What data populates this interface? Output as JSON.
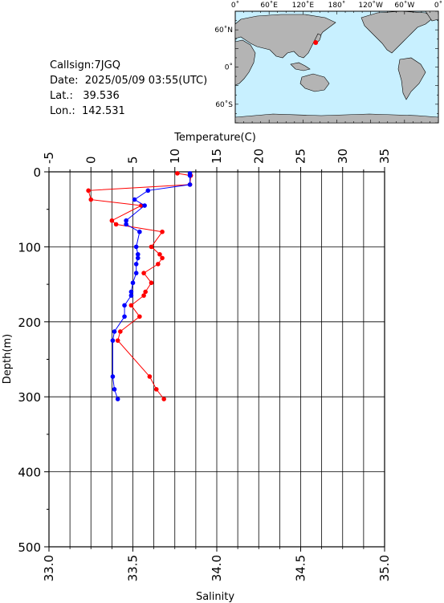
{
  "station": {
    "callsign_label": "Callsign:",
    "callsign": "7JGQ",
    "date_label": "Date:",
    "date": "2025/05/09 03:55(UTC)",
    "lat_label": "Lat.:",
    "lat": "39.536",
    "lon_label": "Lon.:",
    "lon": "142.531"
  },
  "map": {
    "top_labels": [
      "0˚",
      "60˚E",
      "120˚E",
      "180˚",
      "120˚W",
      "60˚W",
      "0˚"
    ],
    "lat_labels": [
      "60˚N",
      "0˚",
      "60˚S"
    ],
    "ocean_color": "#c8f0ff",
    "land_color": "#b4b4b4",
    "marker_color": "#ff0000",
    "station_lon": 142.531,
    "station_lat": 39.536
  },
  "chart_data": {
    "type": "scatter",
    "ylabel": "Depth(m)",
    "ylim": [
      0,
      500
    ],
    "y_ticks": [
      "0",
      "100",
      "200",
      "300",
      "400",
      "500"
    ],
    "grid": true,
    "temperature_axis": {
      "label": "Temperature(C)",
      "range": [
        -5,
        35
      ],
      "ticks": [
        "-5",
        "0",
        "5",
        "10",
        "15",
        "20",
        "25",
        "30",
        "35"
      ]
    },
    "salinity_axis": {
      "label": "Salinity",
      "range": [
        33.0,
        35.0
      ],
      "ticks": [
        "33.0",
        "33.5",
        "34.0",
        "34.5",
        "35.0"
      ]
    },
    "series": [
      {
        "quantity": "temperature",
        "color": "#ff0000",
        "points": [
          {
            "depth": 2,
            "value": 10.3
          },
          {
            "depth": 5,
            "value": 11.9
          },
          {
            "depth": 17,
            "value": 11.8
          },
          {
            "depth": 25,
            "value": -0.3
          },
          {
            "depth": 37,
            "value": 0.0
          },
          {
            "depth": 45,
            "value": 6.0
          },
          {
            "depth": 65,
            "value": 2.5
          },
          {
            "depth": 70,
            "value": 3.0
          },
          {
            "depth": 80,
            "value": 8.5
          },
          {
            "depth": 100,
            "value": 7.2
          },
          {
            "depth": 110,
            "value": 8.2
          },
          {
            "depth": 115,
            "value": 8.5
          },
          {
            "depth": 123,
            "value": 8.0
          },
          {
            "depth": 135,
            "value": 6.3
          },
          {
            "depth": 148,
            "value": 7.2
          },
          {
            "depth": 160,
            "value": 6.5
          },
          {
            "depth": 165,
            "value": 6.3
          },
          {
            "depth": 178,
            "value": 4.8
          },
          {
            "depth": 193,
            "value": 5.8
          },
          {
            "depth": 213,
            "value": 3.5
          },
          {
            "depth": 225,
            "value": 3.2
          },
          {
            "depth": 273,
            "value": 7.0
          },
          {
            "depth": 290,
            "value": 7.8
          },
          {
            "depth": 303,
            "value": 8.7
          }
        ]
      },
      {
        "quantity": "salinity",
        "color": "#0000ff",
        "points": [
          {
            "depth": 2,
            "value": 33.84
          },
          {
            "depth": 5,
            "value": 33.84
          },
          {
            "depth": 17,
            "value": 33.84
          },
          {
            "depth": 25,
            "value": 33.59
          },
          {
            "depth": 37,
            "value": 33.51
          },
          {
            "depth": 45,
            "value": 33.57
          },
          {
            "depth": 65,
            "value": 33.46
          },
          {
            "depth": 70,
            "value": 33.46
          },
          {
            "depth": 80,
            "value": 33.54
          },
          {
            "depth": 100,
            "value": 33.52
          },
          {
            "depth": 110,
            "value": 33.53
          },
          {
            "depth": 115,
            "value": 33.53
          },
          {
            "depth": 123,
            "value": 33.52
          },
          {
            "depth": 135,
            "value": 33.52
          },
          {
            "depth": 148,
            "value": 33.5
          },
          {
            "depth": 160,
            "value": 33.49
          },
          {
            "depth": 165,
            "value": 33.49
          },
          {
            "depth": 178,
            "value": 33.45
          },
          {
            "depth": 193,
            "value": 33.45
          },
          {
            "depth": 213,
            "value": 33.39
          },
          {
            "depth": 225,
            "value": 33.38
          },
          {
            "depth": 273,
            "value": 33.38
          },
          {
            "depth": 290,
            "value": 33.39
          },
          {
            "depth": 303,
            "value": 33.41
          }
        ]
      }
    ]
  }
}
